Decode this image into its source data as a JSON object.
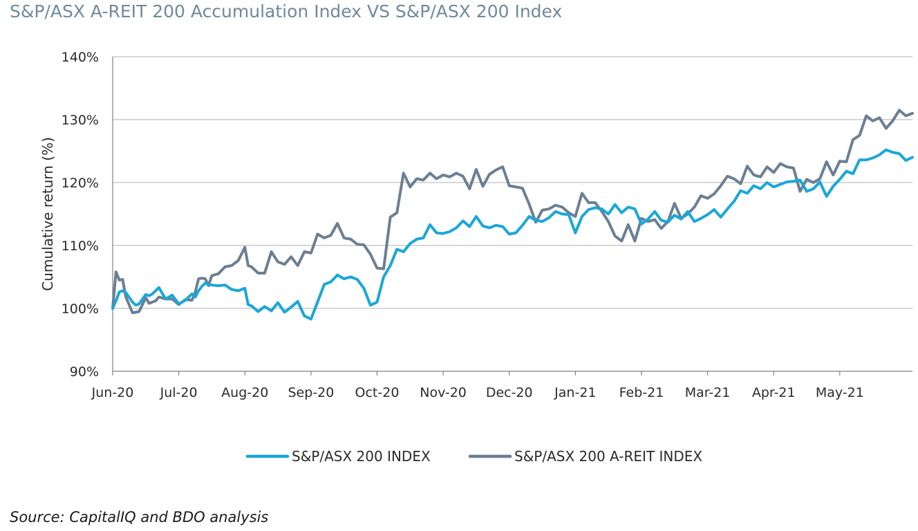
{
  "title": "S&P/ASX A-REIT 200 Accumulation Index VS S&P/ASX 200 Index",
  "source": "Source: CapitalIQ and BDO analysis",
  "chart_data": {
    "type": "line",
    "title": "S&P/ASX A-REIT 200 Accumulation Index VS S&P/ASX 200 Index",
    "xlabel": "",
    "ylabel": "Cumulative return (%)",
    "ylim": [
      90,
      140
    ],
    "yticks": [
      90,
      100,
      110,
      120,
      130,
      140
    ],
    "ytick_labels": [
      "90%",
      "100%",
      "110%",
      "120%",
      "130%",
      "140%"
    ],
    "xlim": [
      0,
      12.1
    ],
    "xticks": [
      0,
      1,
      2,
      3,
      4,
      5,
      6,
      7,
      8,
      9,
      10,
      11
    ],
    "xtick_labels": [
      "Jun-20",
      "Jul-20",
      "Aug-20",
      "Sep-20",
      "Oct-20",
      "Nov-20",
      "Dec-20",
      "Jan-21",
      "Feb-21",
      "Mar-21",
      "Apr-21",
      "May-21"
    ],
    "grid": "horizontal",
    "legend_position": "bottom",
    "series": [
      {
        "name": "S&P/ASX 200 INDEX",
        "color": "#1aa7d8",
        "x": [
          0,
          0.05,
          0.1,
          0.15,
          0.2,
          0.3,
          0.35,
          0.4,
          0.5,
          0.55,
          0.6,
          0.65,
          0.7,
          0.8,
          0.9,
          1.0,
          1.1,
          1.2,
          1.25,
          1.3,
          1.35,
          1.4,
          1.45,
          1.5,
          1.6,
          1.7,
          1.8,
          1.9,
          2.0,
          2.05,
          2.1,
          2.2,
          2.3,
          2.4,
          2.5,
          2.6,
          2.7,
          2.8,
          2.9,
          3.0,
          3.1,
          3.2,
          3.3,
          3.4,
          3.5,
          3.6,
          3.7,
          3.8,
          3.9,
          4.0,
          4.1,
          4.2,
          4.3,
          4.4,
          4.5,
          4.6,
          4.7,
          4.8,
          4.9,
          5.0,
          5.1,
          5.2,
          5.3,
          5.4,
          5.5,
          5.6,
          5.7,
          5.8,
          5.9,
          6.0,
          6.1,
          6.2,
          6.3,
          6.4,
          6.5,
          6.6,
          6.7,
          6.8,
          6.9,
          7.0,
          7.1,
          7.2,
          7.3,
          7.4,
          7.5,
          7.6,
          7.7,
          7.8,
          7.9,
          8.0,
          8.1,
          8.2,
          8.3,
          8.4,
          8.5,
          8.6,
          8.7,
          8.8,
          8.9,
          9.0,
          9.1,
          9.2,
          9.3,
          9.4,
          9.5,
          9.6,
          9.7,
          9.8,
          9.9,
          10.0,
          10.1,
          10.2,
          10.3,
          10.4,
          10.5,
          10.6,
          10.7,
          10.8,
          10.9,
          11.0,
          11.1,
          11.2,
          11.3,
          11.4,
          11.5,
          11.6,
          11.7,
          11.8,
          11.9,
          12.0,
          12.1
        ],
        "values": [
          100,
          101.2,
          102.6,
          102.8,
          102.5,
          101.0,
          100.5,
          100.7,
          102.2,
          102.0,
          102.3,
          102.8,
          103.3,
          101.5,
          102.1,
          100.7,
          101.3,
          102.3,
          101.8,
          102.8,
          103.5,
          104.0,
          103.8,
          103.7,
          103.6,
          103.7,
          103.0,
          102.8,
          103.2,
          100.6,
          100.4,
          99.5,
          100.3,
          99.6,
          100.9,
          99.4,
          100.2,
          101.1,
          98.8,
          98.3,
          101.0,
          103.8,
          104.2,
          105.3,
          104.7,
          105.0,
          104.6,
          103.2,
          100.5,
          101.0,
          105.0,
          106.8,
          109.4,
          109.0,
          110.3,
          111.0,
          111.2,
          113.3,
          112.0,
          111.9,
          112.2,
          112.8,
          113.9,
          113.0,
          114.6,
          113.1,
          112.8,
          113.2,
          113.0,
          111.8,
          112.0,
          113.2,
          114.6,
          114.0,
          113.8,
          114.4,
          115.4,
          115.0,
          114.9,
          112.0,
          114.6,
          115.7,
          116.0,
          115.8,
          115.0,
          116.5,
          115.2,
          116.1,
          115.8,
          113.4,
          114.2,
          115.4,
          114.0,
          113.7,
          114.8,
          114.2,
          115.4,
          113.8,
          114.3,
          114.9,
          115.7,
          114.5,
          115.8,
          117.0,
          118.7,
          118.3,
          119.5,
          119.0,
          120.0,
          119.3,
          119.7,
          120.1,
          120.2,
          120.4,
          118.6,
          119.0,
          120.1,
          117.8,
          119.4,
          120.5,
          121.8,
          121.4,
          123.6,
          123.6,
          123.9,
          124.4,
          125.2,
          124.8,
          124.6,
          123.5,
          124.0
        ]
      },
      {
        "name": "S&P/ASX 200 A-REIT INDEX",
        "color": "#6c7f92",
        "x": [
          0,
          0.05,
          0.1,
          0.15,
          0.2,
          0.3,
          0.35,
          0.4,
          0.5,
          0.55,
          0.6,
          0.65,
          0.7,
          0.8,
          0.9,
          1.0,
          1.1,
          1.2,
          1.25,
          1.3,
          1.35,
          1.4,
          1.45,
          1.5,
          1.6,
          1.7,
          1.8,
          1.9,
          2.0,
          2.05,
          2.1,
          2.2,
          2.3,
          2.4,
          2.5,
          2.6,
          2.7,
          2.8,
          2.9,
          3.0,
          3.1,
          3.2,
          3.3,
          3.4,
          3.5,
          3.6,
          3.7,
          3.8,
          3.9,
          4.0,
          4.1,
          4.2,
          4.3,
          4.4,
          4.5,
          4.6,
          4.7,
          4.8,
          4.9,
          5.0,
          5.1,
          5.2,
          5.3,
          5.4,
          5.5,
          5.6,
          5.7,
          5.8,
          5.9,
          6.0,
          6.1,
          6.2,
          6.3,
          6.4,
          6.5,
          6.6,
          6.7,
          6.8,
          6.9,
          7.0,
          7.1,
          7.2,
          7.3,
          7.4,
          7.5,
          7.6,
          7.7,
          7.8,
          7.9,
          8.0,
          8.1,
          8.2,
          8.3,
          8.4,
          8.5,
          8.6,
          8.7,
          8.8,
          8.9,
          9.0,
          9.1,
          9.2,
          9.3,
          9.4,
          9.5,
          9.6,
          9.7,
          9.8,
          9.9,
          10.0,
          10.1,
          10.2,
          10.3,
          10.4,
          10.5,
          10.6,
          10.7,
          10.8,
          10.9,
          11.0,
          11.1,
          11.2,
          11.3,
          11.4,
          11.5,
          11.6,
          11.7,
          11.8,
          11.9,
          12.0,
          12.1
        ],
        "values": [
          100,
          105.8,
          104.5,
          104.6,
          101.8,
          99.3,
          99.4,
          99.5,
          101.7,
          100.8,
          101.0,
          101.2,
          101.8,
          101.5,
          101.5,
          100.6,
          101.4,
          101.3,
          102.6,
          104.7,
          104.8,
          104.7,
          103.6,
          105.2,
          105.5,
          106.6,
          106.8,
          107.6,
          109.7,
          106.8,
          106.6,
          105.6,
          105.6,
          109.0,
          107.4,
          107.0,
          108.2,
          106.8,
          109.0,
          108.8,
          111.8,
          111.2,
          111.6,
          113.5,
          111.2,
          111.0,
          110.2,
          110.1,
          108.6,
          106.4,
          106.3,
          114.5,
          115.2,
          121.5,
          119.3,
          120.6,
          120.4,
          121.5,
          120.6,
          121.2,
          120.9,
          121.5,
          121.0,
          119.0,
          122.1,
          119.4,
          121.3,
          122.0,
          122.5,
          119.5,
          119.3,
          119.1,
          116.6,
          113.7,
          115.6,
          115.8,
          116.4,
          116.1,
          115.2,
          114.6,
          118.3,
          116.8,
          116.8,
          115.4,
          113.8,
          111.5,
          110.7,
          113.3,
          110.7,
          114.3,
          113.8,
          114.1,
          112.7,
          113.8,
          116.7,
          114.3,
          115.0,
          116.1,
          117.9,
          117.5,
          118.2,
          119.5,
          121.0,
          120.6,
          119.8,
          122.6,
          121.2,
          120.9,
          122.5,
          121.6,
          123.0,
          122.5,
          122.3,
          118.6,
          120.5,
          120.0,
          120.6,
          123.3,
          121.2,
          123.4,
          123.3,
          126.8,
          127.5,
          130.6,
          129.8,
          130.3,
          128.6,
          129.8,
          131.5,
          130.6,
          131.0
        ]
      }
    ]
  }
}
